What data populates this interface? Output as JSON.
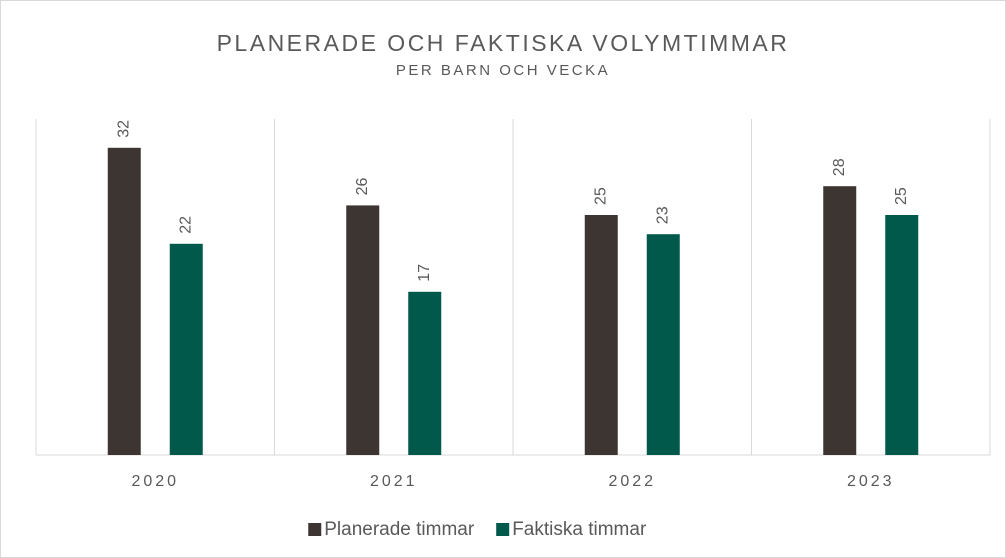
{
  "chart_data": {
    "type": "bar",
    "title": "PLANERADE OCH FAKTISKA VOLYMTIMMAR",
    "subtitle": "PER BARN OCH VECKA",
    "categories": [
      "2020",
      "2021",
      "2022",
      "2023"
    ],
    "series": [
      {
        "name": "Planerade timmar",
        "color": "#3d3532",
        "values": [
          32,
          26,
          25,
          28
        ]
      },
      {
        "name": "Faktiska timmar",
        "color": "#00594a",
        "values": [
          22,
          17,
          23,
          25
        ]
      }
    ],
    "ylim": [
      0,
      35
    ]
  }
}
